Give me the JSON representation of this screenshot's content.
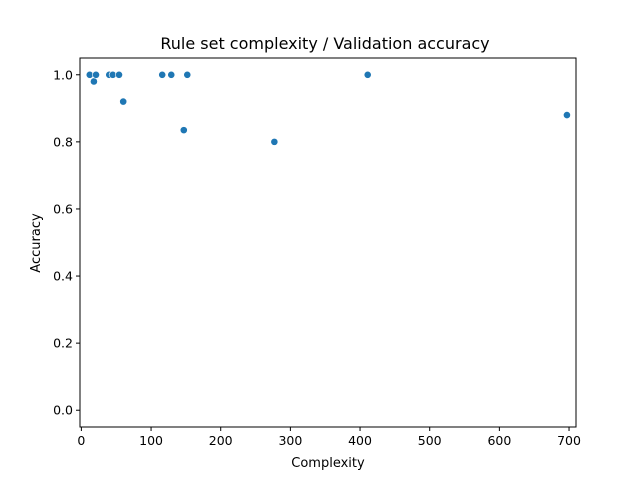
{
  "chart_data": {
    "type": "scatter",
    "title": "Rule set complexity / Validation accuracy",
    "xlabel": "Complexity",
    "ylabel": "Accuracy",
    "xlim": [
      -2,
      710
    ],
    "ylim": [
      -0.05,
      1.05
    ],
    "xticks": [
      0,
      100,
      200,
      300,
      400,
      500,
      600,
      700
    ],
    "xtick_labels": [
      "0",
      "100",
      "200",
      "300",
      "400",
      "500",
      "600",
      "700"
    ],
    "yticks": [
      0.0,
      0.2,
      0.4,
      0.6,
      0.8,
      1.0
    ],
    "ytick_labels": [
      "0.0",
      "0.2",
      "0.4",
      "0.6",
      "0.8",
      "1.0"
    ],
    "grid": false,
    "legend": false,
    "marker_color": "#1f77b4",
    "points": [
      {
        "x": 12,
        "y": 1.0
      },
      {
        "x": 18,
        "y": 0.98
      },
      {
        "x": 21,
        "y": 1.0
      },
      {
        "x": 40,
        "y": 1.0
      },
      {
        "x": 45,
        "y": 1.0
      },
      {
        "x": 54,
        "y": 1.0
      },
      {
        "x": 60,
        "y": 0.92
      },
      {
        "x": 116,
        "y": 1.0
      },
      {
        "x": 129,
        "y": 1.0
      },
      {
        "x": 147,
        "y": 0.835
      },
      {
        "x": 152,
        "y": 1.0
      },
      {
        "x": 277,
        "y": 0.8
      },
      {
        "x": 411,
        "y": 1.0
      },
      {
        "x": 697,
        "y": 0.88
      }
    ]
  }
}
